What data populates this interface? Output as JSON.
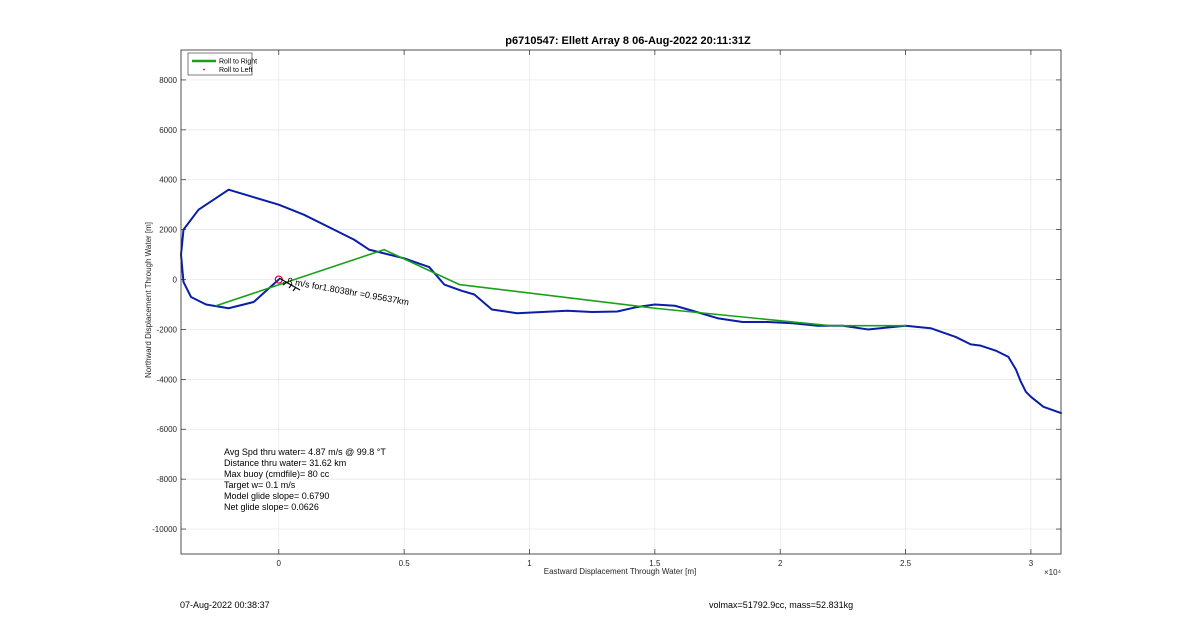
{
  "chart_data": {
    "type": "line",
    "title": "p6710547: Ellett Array 8 06-Aug-2022 20:11:31Z",
    "xlabel": "Eastward Displacement Through Water [m]",
    "ylabel": "Northward Displacement Through Water [m]",
    "x_exponent_label": "×10⁴",
    "xlim": [
      -3900,
      31200
    ],
    "ylim": [
      -11000,
      9200
    ],
    "x_ticks": [
      0,
      5000,
      10000,
      15000,
      20000,
      25000,
      30000
    ],
    "x_tick_labels": [
      "0",
      "0.5",
      "1",
      "1.5",
      "2",
      "2.5",
      "3"
    ],
    "y_ticks": [
      -10000,
      -8000,
      -6000,
      -4000,
      -2000,
      0,
      2000,
      4000,
      6000,
      8000
    ],
    "y_tick_labels": [
      "-10000",
      "-8000",
      "-6000",
      "-4000",
      "-2000",
      "0",
      "2000",
      "4000",
      "6000",
      "8000"
    ],
    "grid": true,
    "legend": {
      "placement": "top-left",
      "entries": [
        {
          "label": "Roll to Right",
          "color": "#1aa01a",
          "style": "line"
        },
        {
          "label": "Roll to Left",
          "color": "#cc0000",
          "style": "marker"
        }
      ]
    },
    "series": [
      {
        "name": "Roll to Right",
        "color": "#1aa01a",
        "x": [
          -2500,
          4200,
          7200,
          15000,
          22000,
          25000
        ],
        "y": [
          -1050,
          1200,
          -200,
          -1150,
          -1850,
          -1850
        ]
      },
      {
        "color": "#0a1ea8",
        "x": [
          0,
          -1000,
          -2000,
          -2900,
          -3500,
          -3800,
          -3900,
          -3800,
          -3200,
          -2000,
          -1000,
          0,
          1000,
          2000,
          3000,
          3600,
          4200,
          5000,
          6000,
          6600,
          7300,
          7800,
          8500,
          9500,
          10500,
          11500,
          12500,
          13500,
          14300,
          15000,
          15800,
          16500,
          17500,
          18500,
          19500,
          20500,
          21500,
          22500,
          23500,
          24500,
          25000,
          26000,
          27000,
          27600,
          28000,
          28600,
          29100,
          29400,
          29600,
          29700,
          29800,
          30000,
          30500,
          31200
        ],
        "y": [
          0,
          -900,
          -1150,
          -1000,
          -700,
          -100,
          1000,
          2000,
          2800,
          3600,
          3300,
          3000,
          2600,
          2100,
          1600,
          1200,
          1050,
          850,
          500,
          -200,
          -450,
          -600,
          -1200,
          -1350,
          -1300,
          -1250,
          -1300,
          -1280,
          -1100,
          -1000,
          -1050,
          -1250,
          -1550,
          -1700,
          -1700,
          -1750,
          -1850,
          -1850,
          -2000,
          -1900,
          -1850,
          -1950,
          -2300,
          -2600,
          -2650,
          -2850,
          -3100,
          -3600,
          -4100,
          -4300,
          -4500,
          -4700,
          -5100,
          -5350
        ]
      }
    ],
    "start_marker": {
      "x": 0,
      "y": 0,
      "color": "#cc0044"
    },
    "annotations": {
      "arrow_text": "..ß m/s for1.8038hr =0.95637km",
      "stats": [
        "Avg Spd thru water=  4.87 m/s @  99.8 °T",
        "Distance thru water= 31.62 km",
        "Max buoy (cmdfile)= 80 cc",
        "Target w= 0.1 m/s",
        "Model glide slope= 0.6790",
        "Net glide slope= 0.0626"
      ]
    }
  },
  "footer": {
    "timestamp": "07-Aug-2022 00:38:37",
    "volume_mass": "volmax=51792.9cc, mass=52.831kg"
  }
}
